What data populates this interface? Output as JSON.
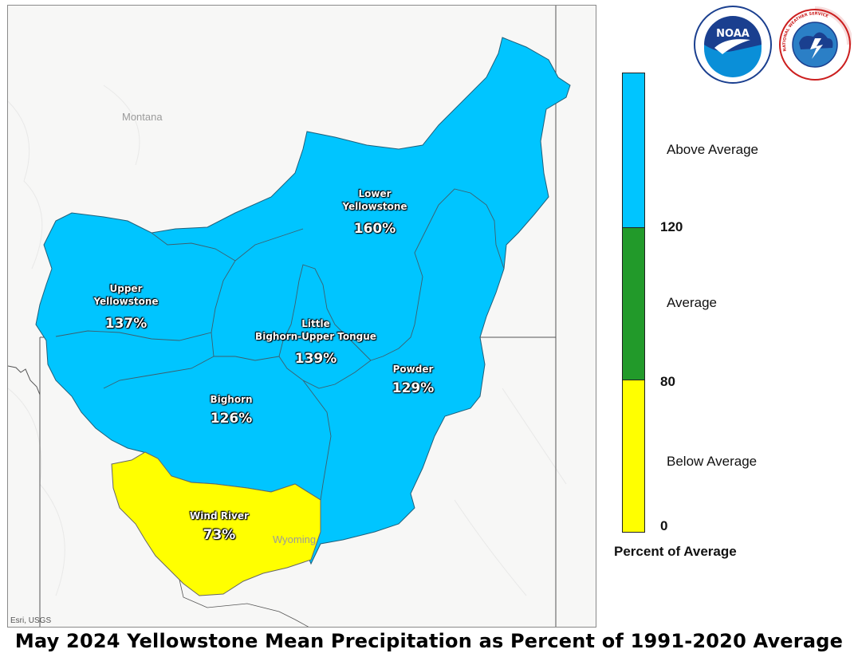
{
  "title": "May 2024 Yellowstone Mean Precipitation as Percent of 1991-2020 Average",
  "attribution": "Esri, USGS",
  "states": {
    "montana": "Montana",
    "wyoming": "Wyoming"
  },
  "basins": [
    {
      "id": "lower-yellowstone",
      "name": "Lower\nYellowstone",
      "value": "160%",
      "category": "above"
    },
    {
      "id": "upper-yellowstone",
      "name": "Upper\nYellowstone",
      "value": "137%",
      "category": "above"
    },
    {
      "id": "little-bighorn-upper-tongue",
      "name": "Little\nBighorn-Upper Tongue",
      "value": "139%",
      "category": "above"
    },
    {
      "id": "powder",
      "name": "Powder",
      "value": "129%",
      "category": "above"
    },
    {
      "id": "bighorn",
      "name": "Bighorn",
      "value": "126%",
      "category": "above"
    },
    {
      "id": "wind-river",
      "name": "Wind River",
      "value": "73%",
      "category": "below"
    }
  ],
  "legend": {
    "title": "Percent of Average",
    "classes": [
      {
        "label": "Above Average",
        "color": "#00c5ff"
      },
      {
        "label": "Average",
        "color": "#229a2a"
      },
      {
        "label": "Below Average",
        "color": "#ffff00"
      }
    ],
    "ticks": [
      "120",
      "80",
      "0"
    ]
  },
  "logos": {
    "noaa": "NOAA",
    "nws": "NATIONAL WEATHER SERVICE"
  },
  "colors": {
    "above": "#00c5ff",
    "average": "#229a2a",
    "below": "#ffff00"
  }
}
